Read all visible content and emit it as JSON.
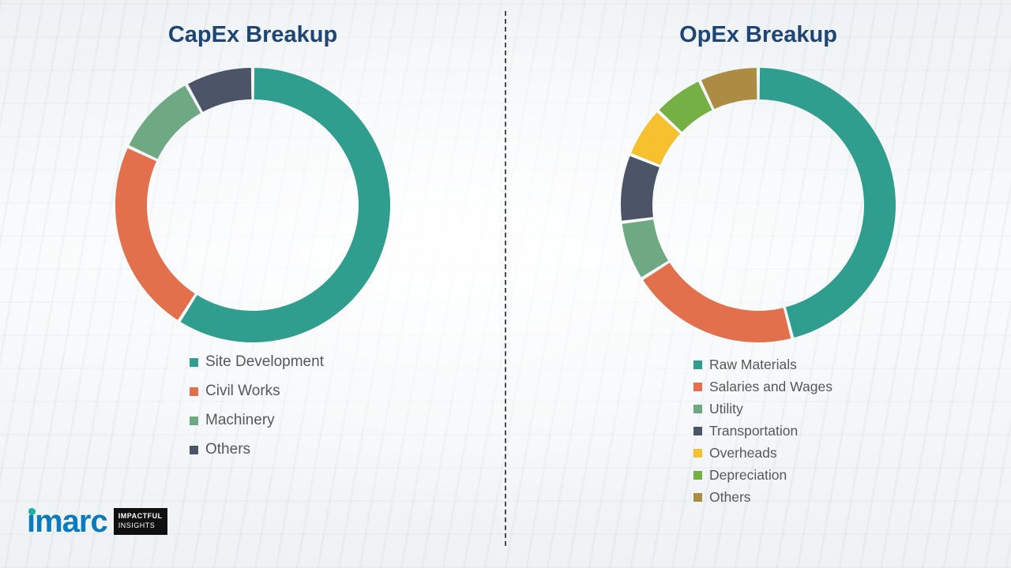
{
  "logo": {
    "brand": "imarc",
    "tagline_line1": "IMPACTFUL",
    "tagline_line2": "INSIGHTS",
    "brand_color": "#0b7bc0",
    "dot_color": "#19b1a0"
  },
  "divider": {
    "style": "vertical-dashed",
    "color": "#4a4a4a"
  },
  "chart_data": [
    {
      "type": "pie",
      "donut": true,
      "title": "CapEx Breakup",
      "title_color": "#1e4674",
      "legend_position": "bottom",
      "segments": [
        {
          "label": "Site Development",
          "value": 59,
          "color": "#2f9e8f"
        },
        {
          "label": "Civil Works",
          "value": 23,
          "color": "#e2704d"
        },
        {
          "label": "Machinery",
          "value": 10,
          "color": "#6fa983"
        },
        {
          "label": "Others",
          "value": 8,
          "color": "#4c5568"
        }
      ]
    },
    {
      "type": "pie",
      "donut": true,
      "title": "OpEx Breakup",
      "title_color": "#1e4674",
      "legend_position": "bottom",
      "segments": [
        {
          "label": "Raw Materials",
          "value": 46,
          "color": "#2f9e8f"
        },
        {
          "label": "Salaries and Wages",
          "value": 20,
          "color": "#e2704d"
        },
        {
          "label": "Utility",
          "value": 7,
          "color": "#6fa983"
        },
        {
          "label": "Transportation",
          "value": 8,
          "color": "#4c5568"
        },
        {
          "label": "Overheads",
          "value": 6,
          "color": "#f6c02f"
        },
        {
          "label": "Depreciation",
          "value": 6,
          "color": "#74b043"
        },
        {
          "label": "Others",
          "value": 7,
          "color": "#ac8c43"
        }
      ]
    }
  ]
}
